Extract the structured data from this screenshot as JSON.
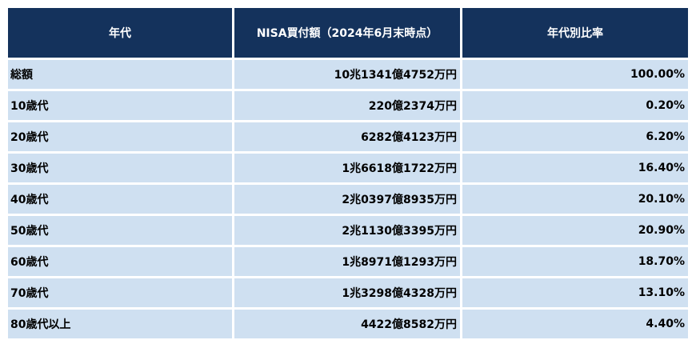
{
  "table": {
    "header": [
      "年代",
      "NISA買付額（2024年6月末時点）",
      "年代別比率"
    ],
    "rows": [
      [
        "総額",
        "10兆1341億4752万円",
        "100.00%"
      ],
      [
        "10歳代",
        "220億2374万円",
        "0.20%"
      ],
      [
        "20歳代",
        "6282億4123万円",
        "6.20%"
      ],
      [
        "30歳代",
        "1兆6618億1722万円",
        "16.40%"
      ],
      [
        "40歳代",
        "2兆0397億8935万円",
        "20.10%"
      ],
      [
        "50歳代",
        "2兆1130億3395万円",
        "20.90%"
      ],
      [
        "60歳代",
        "1兆8971億1293万円",
        "18.70%"
      ],
      [
        "70歳代",
        "1兆3298億4328万円",
        "13.10%"
      ],
      [
        "80歳代以上",
        "4422億8582万円",
        "4.40%"
      ]
    ]
  }
}
